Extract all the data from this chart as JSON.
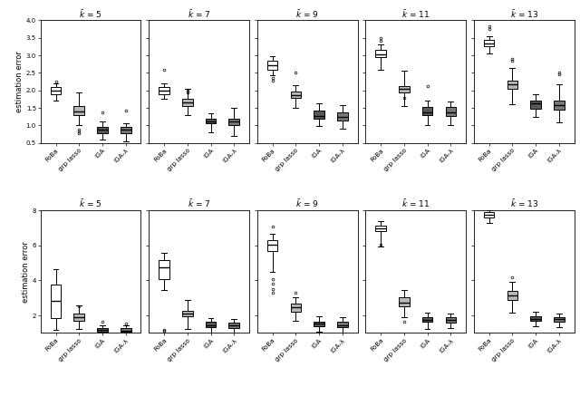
{
  "methods": [
    "FoBa",
    "grp lasso",
    "IGA",
    "IGA-λ"
  ],
  "ylabel": "estimation error",
  "row1_ylim": [
    0.5,
    4.0
  ],
  "row1_yticks": [
    0.5,
    1.0,
    1.5,
    2.0,
    2.5,
    3.0,
    3.5,
    4.0
  ],
  "row2_ylim": [
    1.0,
    8.0
  ],
  "row2_yticks": [
    2,
    4,
    6,
    8
  ],
  "k_vals": [
    5,
    7,
    9,
    11,
    13
  ],
  "row1_data": {
    "k5": {
      "FoBa": {
        "q1": 1.9,
        "median": 2.0,
        "q3": 2.1,
        "whislo": 1.7,
        "whishi": 2.2,
        "fliers": [
          2.25
        ]
      },
      "grp lasso": {
        "q1": 1.3,
        "median": 1.4,
        "q3": 1.55,
        "whislo": 1.0,
        "whishi": 1.95,
        "fliers": [
          0.82,
          0.87,
          0.78
        ]
      },
      "IGA": {
        "q1": 0.78,
        "median": 0.88,
        "q3": 0.97,
        "whislo": 0.6,
        "whishi": 1.1,
        "fliers": [
          1.38
        ]
      },
      "IGA-lam": {
        "q1": 0.77,
        "median": 0.87,
        "q3": 0.97,
        "whislo": 0.55,
        "whishi": 1.05,
        "fliers": [
          1.42
        ]
      }
    },
    "k7": {
      "FoBa": {
        "q1": 1.9,
        "median": 2.0,
        "q3": 2.1,
        "whislo": 1.75,
        "whishi": 2.2,
        "fliers": [
          2.6
        ]
      },
      "grp lasso": {
        "q1": 1.55,
        "median": 1.65,
        "q3": 1.75,
        "whislo": 1.3,
        "whishi": 2.05,
        "fliers": [
          1.95,
          2.0
        ]
      },
      "IGA": {
        "q1": 1.05,
        "median": 1.1,
        "q3": 1.2,
        "whislo": 0.8,
        "whishi": 1.35,
        "fliers": []
      },
      "IGA-lam": {
        "q1": 1.0,
        "median": 1.1,
        "q3": 1.2,
        "whislo": 0.7,
        "whishi": 1.5,
        "fliers": []
      }
    },
    "k9": {
      "FoBa": {
        "q1": 2.6,
        "median": 2.72,
        "q3": 2.85,
        "whislo": 2.42,
        "whishi": 2.98,
        "fliers": [
          2.35,
          2.28
        ]
      },
      "grp lasso": {
        "q1": 1.78,
        "median": 1.87,
        "q3": 1.97,
        "whislo": 1.5,
        "whishi": 2.15,
        "fliers": [
          2.5
        ]
      },
      "IGA": {
        "q1": 1.2,
        "median": 1.28,
        "q3": 1.42,
        "whislo": 0.98,
        "whishi": 1.62,
        "fliers": []
      },
      "IGA-lam": {
        "q1": 1.15,
        "median": 1.25,
        "q3": 1.38,
        "whislo": 0.9,
        "whishi": 1.58,
        "fliers": []
      }
    },
    "k11": {
      "FoBa": {
        "q1": 2.95,
        "median": 3.02,
        "q3": 3.15,
        "whislo": 2.6,
        "whishi": 3.3,
        "fliers": [
          3.42,
          3.5
        ]
      },
      "grp lasso": {
        "q1": 1.95,
        "median": 2.05,
        "q3": 2.12,
        "whislo": 1.55,
        "whishi": 2.55,
        "fliers": [
          1.78
        ]
      },
      "IGA": {
        "q1": 1.3,
        "median": 1.38,
        "q3": 1.52,
        "whislo": 1.0,
        "whishi": 1.72,
        "fliers": [
          2.12
        ]
      },
      "IGA-lam": {
        "q1": 1.28,
        "median": 1.38,
        "q3": 1.52,
        "whislo": 1.02,
        "whishi": 1.68,
        "fliers": []
      }
    },
    "k13": {
      "FoBa": {
        "q1": 3.25,
        "median": 3.35,
        "q3": 3.45,
        "whislo": 3.05,
        "whishi": 3.55,
        "fliers": [
          3.75,
          3.82
        ]
      },
      "grp lasso": {
        "q1": 2.05,
        "median": 2.18,
        "q3": 2.28,
        "whislo": 1.6,
        "whishi": 2.65,
        "fliers": [
          2.85,
          2.9
        ]
      },
      "IGA": {
        "q1": 1.48,
        "median": 1.62,
        "q3": 1.72,
        "whislo": 1.25,
        "whishi": 1.88,
        "fliers": []
      },
      "IGA-lam": {
        "q1": 1.45,
        "median": 1.58,
        "q3": 1.72,
        "whislo": 1.08,
        "whishi": 2.18,
        "fliers": [
          2.45,
          2.52
        ]
      }
    }
  },
  "row2_data": {
    "k5": {
      "FoBa": {
        "q1": 1.85,
        "median": 2.85,
        "q3": 3.75,
        "whislo": 1.15,
        "whishi": 4.65,
        "fliers": [
          0.82,
          0.88
        ]
      },
      "grp lasso": {
        "q1": 1.7,
        "median": 1.88,
        "q3": 2.08,
        "whislo": 1.22,
        "whishi": 2.58,
        "fliers": [
          2.52
        ]
      },
      "IGA": {
        "q1": 1.08,
        "median": 1.18,
        "q3": 1.28,
        "whislo": 0.88,
        "whishi": 1.42,
        "fliers": [
          1.62
        ]
      },
      "IGA-lam": {
        "q1": 1.05,
        "median": 1.12,
        "q3": 1.28,
        "whislo": 0.88,
        "whishi": 1.42,
        "fliers": [
          1.52
        ]
      }
    },
    "k7": {
      "FoBa": {
        "q1": 4.05,
        "median": 4.75,
        "q3": 5.18,
        "whislo": 3.45,
        "whishi": 5.55,
        "fliers": [
          1.12,
          1.18
        ]
      },
      "grp lasso": {
        "q1": 1.95,
        "median": 2.08,
        "q3": 2.28,
        "whislo": 1.25,
        "whishi": 2.88,
        "fliers": [
          0.88
        ]
      },
      "IGA": {
        "q1": 1.32,
        "median": 1.45,
        "q3": 1.62,
        "whislo": 0.98,
        "whishi": 1.85,
        "fliers": []
      },
      "IGA-lam": {
        "q1": 1.28,
        "median": 1.42,
        "q3": 1.58,
        "whislo": 0.98,
        "whishi": 1.78,
        "fliers": [
          0.88
        ]
      }
    },
    "k9": {
      "FoBa": {
        "q1": 5.65,
        "median": 6.02,
        "q3": 6.28,
        "whislo": 4.5,
        "whishi": 6.68,
        "fliers": [
          7.05,
          4.05,
          3.82,
          3.52,
          3.28
        ]
      },
      "grp lasso": {
        "q1": 2.22,
        "median": 2.45,
        "q3": 2.68,
        "whislo": 1.68,
        "whishi": 3.02,
        "fliers": [
          3.28
        ]
      },
      "IGA": {
        "q1": 1.38,
        "median": 1.52,
        "q3": 1.65,
        "whislo": 1.05,
        "whishi": 1.95,
        "fliers": []
      },
      "IGA-lam": {
        "q1": 1.32,
        "median": 1.45,
        "q3": 1.62,
        "whislo": 1.02,
        "whishi": 1.88,
        "fliers": []
      }
    },
    "k11": {
      "FoBa": {
        "q1": 6.82,
        "median": 6.98,
        "q3": 7.12,
        "whislo": 5.95,
        "whishi": 7.38,
        "fliers": [
          6.02
        ]
      },
      "grp lasso": {
        "q1": 2.52,
        "median": 2.75,
        "q3": 3.02,
        "whislo": 1.88,
        "whishi": 3.45,
        "fliers": [
          1.65
        ]
      },
      "IGA": {
        "q1": 1.62,
        "median": 1.75,
        "q3": 1.92,
        "whislo": 1.25,
        "whishi": 2.15,
        "fliers": []
      },
      "IGA-lam": {
        "q1": 1.58,
        "median": 1.72,
        "q3": 1.88,
        "whislo": 1.28,
        "whishi": 2.12,
        "fliers": []
      }
    },
    "k13": {
      "FoBa": {
        "q1": 7.58,
        "median": 7.75,
        "q3": 7.88,
        "whislo": 7.28,
        "whishi": 8.02,
        "fliers": []
      },
      "grp lasso": {
        "q1": 2.88,
        "median": 3.12,
        "q3": 3.38,
        "whislo": 2.15,
        "whishi": 3.92,
        "fliers": [
          4.18
        ]
      },
      "IGA": {
        "q1": 1.68,
        "median": 1.82,
        "q3": 1.95,
        "whislo": 1.38,
        "whishi": 2.22,
        "fliers": []
      },
      "IGA-lam": {
        "q1": 1.62,
        "median": 1.78,
        "q3": 1.92,
        "whislo": 1.32,
        "whishi": 2.12,
        "fliers": []
      }
    }
  },
  "box_colors": [
    "white",
    "#b8b8b8",
    "#585858",
    "#787878"
  ],
  "figsize": [
    6.4,
    4.48
  ],
  "dpi": 100
}
